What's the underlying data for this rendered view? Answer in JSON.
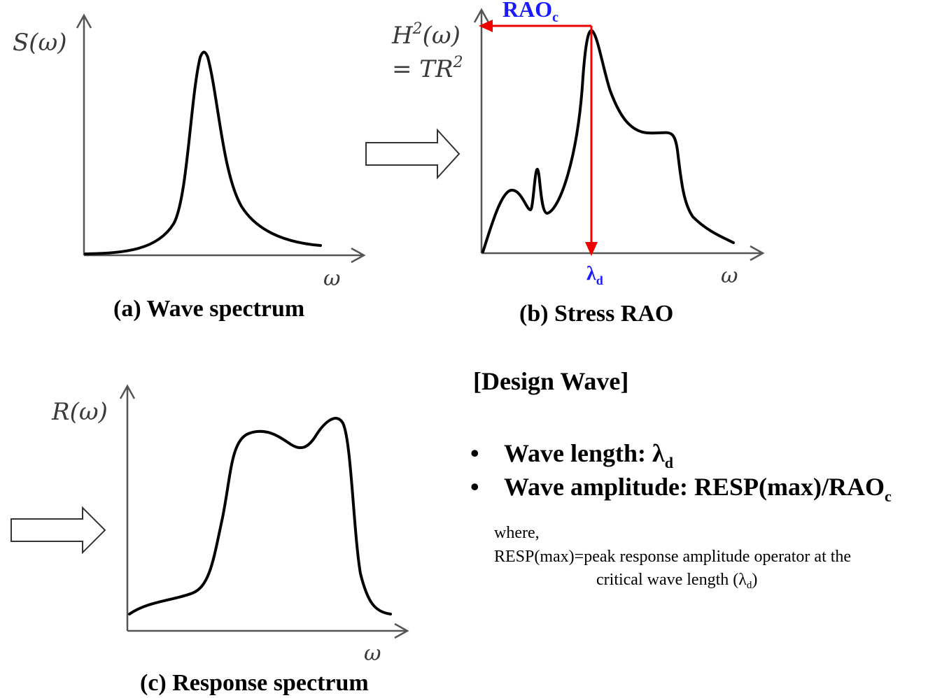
{
  "panel_a": {
    "ylabel": "S(ω)",
    "xlabel": "ω",
    "caption": "(a) Wave spectrum"
  },
  "panel_b": {
    "ylabel_line1": "H",
    "ylabel_sup": "2",
    "ylabel_line1_rest": "(ω)",
    "ylabel_line2": "= TR",
    "ylabel_line2_sup": "2",
    "xlabel": "ω",
    "rao_main": "RAO",
    "rao_sub": "c",
    "lambda_main": "λ",
    "lambda_sub": "d",
    "caption": "(b) Stress RAO"
  },
  "panel_c": {
    "ylabel": "R(ω)",
    "xlabel": "ω",
    "caption": "(c) Response spectrum"
  },
  "design_wave": {
    "heading": "[Design Wave]",
    "bullets": [
      {
        "marker": "•",
        "text": "Wave length: λ",
        "sub": "d"
      },
      {
        "marker": "•",
        "text": "Wave amplitude: RESP(max)/RAO",
        "sub": "c"
      }
    ],
    "note_line1": "where,",
    "note_line2": "RESP(max)=peak response amplitude operator at the",
    "note_line3_main": "critical wave length (λ",
    "note_line3_sub": "d",
    "note_line3_end": ")"
  },
  "colors": {
    "arrow_red": "#ee0000",
    "label_blue": "#1a1aff"
  }
}
